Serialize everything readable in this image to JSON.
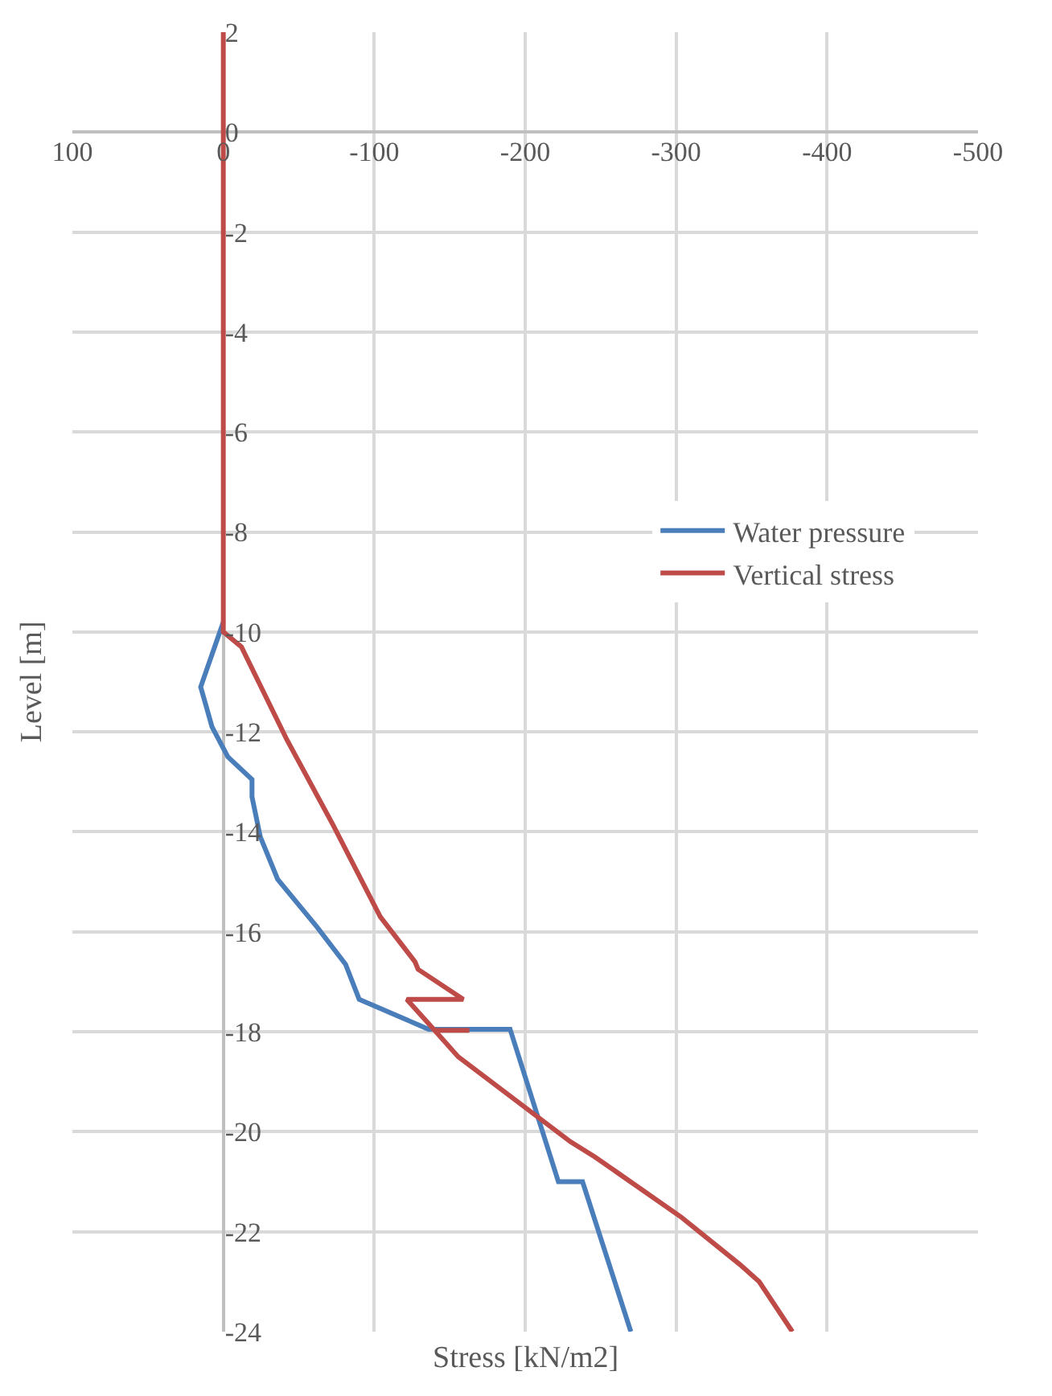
{
  "chart_data": {
    "type": "line",
    "xlabel": "Stress [kN/m2]",
    "ylabel": "Level [m]",
    "xlim": [
      100,
      -500
    ],
    "xticks": [
      100,
      0,
      -100,
      -200,
      -300,
      -400,
      -500
    ],
    "ylim": [
      -24,
      2
    ],
    "yticks": [
      2,
      0,
      -2,
      -4,
      -6,
      -8,
      -10,
      -12,
      -14,
      -16,
      -18,
      -20,
      -22,
      -24
    ],
    "grid": true,
    "legend": "right",
    "line_style": "solid",
    "series": [
      {
        "name": "Water pressure",
        "color": "#4a7ebb",
        "x": [
          0,
          15,
          7.5,
          -3,
          -19,
          -19,
          -24.5,
          -36,
          -62,
          -81,
          -90,
          -136,
          -190,
          -222,
          -238,
          -270
        ],
        "values": [
          -9.8,
          -11.1,
          -11.9,
          -12.5,
          -12.95,
          -13.3,
          -14.1,
          -14.95,
          -15.9,
          -16.65,
          -17.35,
          -17.95,
          -17.95,
          -21.0,
          -21.0,
          -24
        ]
      },
      {
        "name": "Vertical stress",
        "color": "#be4b48",
        "x": [
          0,
          0,
          -12,
          -42,
          -72.5,
          -104,
          -127,
          -129,
          -159,
          -121.5,
          -140,
          -163,
          -140,
          -155.6,
          -230,
          -246,
          -303,
          -342,
          -355,
          -377
        ],
        "values": [
          2,
          -10.0,
          -10.3,
          -12.15,
          -13.85,
          -15.7,
          -16.6,
          -16.75,
          -17.35,
          -17.35,
          -17.97,
          -17.97,
          -17.97,
          -18.5,
          -20.2,
          -20.5,
          -21.7,
          -22.65,
          -23.0,
          -24
        ]
      }
    ]
  }
}
